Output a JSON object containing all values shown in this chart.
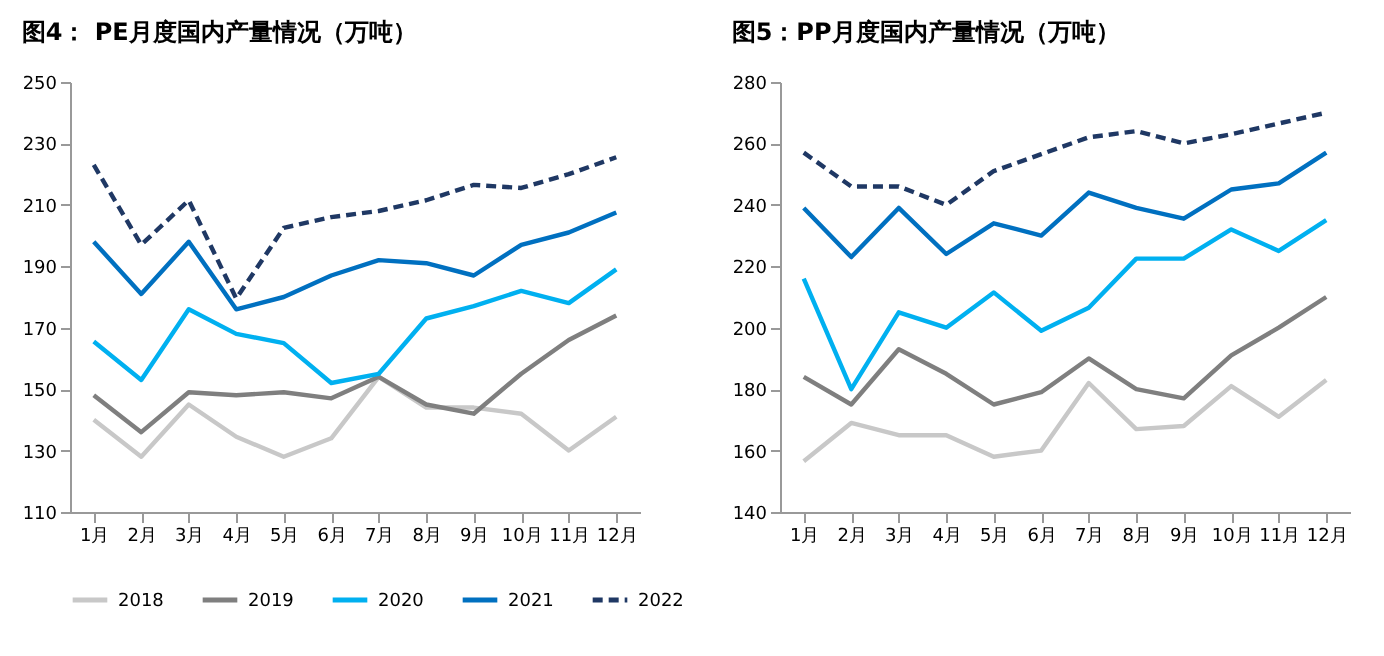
{
  "chart_data": [
    {
      "type": "line",
      "title": "图4： PE月度国内产量情况（万吨）",
      "categories": [
        "1月",
        "2月",
        "3月",
        "4月",
        "5月",
        "6月",
        "7月",
        "8月",
        "9月",
        "10月",
        "11月",
        "12月"
      ],
      "ylim": [
        110,
        250
      ],
      "yticks": [
        110,
        130,
        150,
        170,
        190,
        210,
        230,
        250
      ],
      "grid": false,
      "legend": "bottom",
      "series": [
        {
          "name": "2018",
          "color": "#c8c8c8",
          "line_style": "solid",
          "values": [
            140,
            128,
            145,
            134.5,
            128,
            134,
            154,
            144,
            144,
            142,
            130,
            141
          ]
        },
        {
          "name": "2019",
          "color": "#7f7f7f",
          "line_style": "solid",
          "values": [
            148,
            136,
            149,
            148,
            149,
            147,
            154,
            145,
            142,
            155,
            166,
            174
          ]
        },
        {
          "name": "2020",
          "color": "#00b0f0",
          "line_style": "solid",
          "values": [
            165.5,
            153,
            176,
            168,
            165,
            152,
            155,
            173,
            177,
            182,
            178,
            189
          ]
        },
        {
          "name": "2021",
          "color": "#0070c0",
          "line_style": "solid",
          "values": [
            198,
            181,
            198,
            176,
            180,
            187,
            192,
            191,
            187,
            197,
            201,
            207.5
          ]
        },
        {
          "name": "2022",
          "color": "#1f3864",
          "line_style": "dashed",
          "values": [
            223,
            197,
            211.5,
            179.5,
            202.5,
            206,
            208,
            211.5,
            216.5,
            215.5,
            220,
            225.5
          ]
        }
      ]
    },
    {
      "type": "line",
      "title": "图5：PP月度国内产量情况（万吨）",
      "categories": [
        "1月",
        "2月",
        "3月",
        "4月",
        "5月",
        "6月",
        "7月",
        "8月",
        "9月",
        "10月",
        "11月",
        "12月"
      ],
      "ylim": [
        140,
        280
      ],
      "yticks": [
        140,
        160,
        180,
        200,
        220,
        240,
        260,
        280
      ],
      "grid": false,
      "legend": "bottom",
      "series": [
        {
          "name": "2018",
          "color": "#c8c8c8",
          "line_style": "solid",
          "values": [
            156.5,
            169,
            165,
            165,
            158,
            160,
            182,
            167,
            168,
            181,
            171,
            183
          ]
        },
        {
          "name": "2019",
          "color": "#7f7f7f",
          "line_style": "solid",
          "values": [
            184,
            175,
            193,
            185,
            175,
            179,
            190,
            180,
            177,
            191,
            200,
            210
          ]
        },
        {
          "name": "2020",
          "color": "#00b0f0",
          "line_style": "solid",
          "values": [
            216,
            180,
            205,
            200,
            211.5,
            199,
            206.5,
            222.5,
            222.5,
            232,
            225,
            235
          ]
        },
        {
          "name": "2021",
          "color": "#0070c0",
          "line_style": "solid",
          "values": [
            239,
            223,
            239,
            224,
            234,
            230,
            244,
            239,
            235.5,
            245,
            247,
            257
          ]
        },
        {
          "name": "2022",
          "color": "#1f3864",
          "line_style": "dashed",
          "values": [
            257,
            246,
            246,
            240,
            251,
            256.5,
            262,
            264,
            260,
            263,
            266.5,
            270
          ]
        }
      ]
    }
  ]
}
